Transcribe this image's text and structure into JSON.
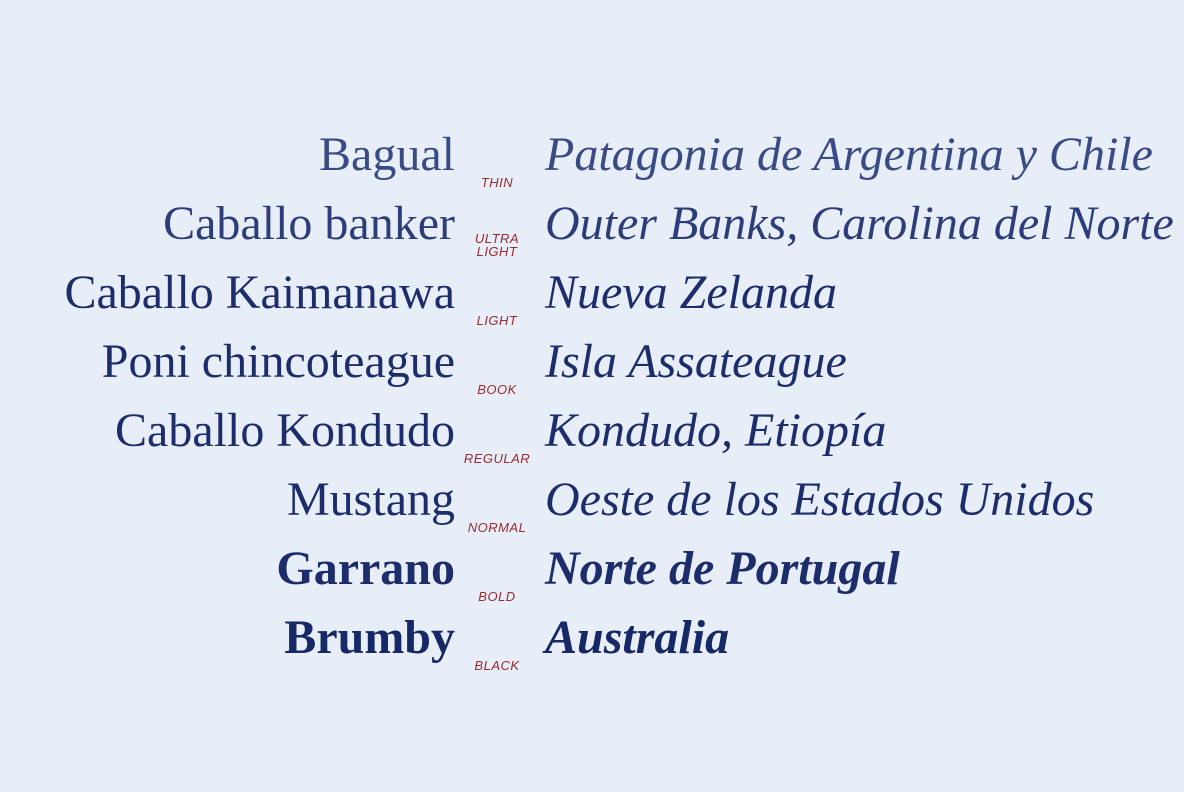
{
  "rows": [
    {
      "name": "Bagual",
      "weight": "THIN",
      "place": "Patagonia de Argentina y Chile"
    },
    {
      "name": "Caballo banker",
      "weight": "ULTRA LIGHT",
      "place": "Outer Banks, Carolina del Norte"
    },
    {
      "name": "Caballo Kaimanawa",
      "weight": "LIGHT",
      "place": "Nueva Zelanda"
    },
    {
      "name": "Poni chincoteague",
      "weight": "BOOK",
      "place": "Isla Assateague"
    },
    {
      "name": "Caballo Kondudo",
      "weight": "REGULAR",
      "place": "Kondudo, Etiopía"
    },
    {
      "name": "Mustang",
      "weight": "NORMAL",
      "place": "Oeste de los Estados Unidos"
    },
    {
      "name": "Garrano",
      "weight": "BOLD",
      "place": "Norte de Portugal"
    },
    {
      "name": "Brumby",
      "weight": "BLACK",
      "place": "Australia"
    }
  ],
  "colors": {
    "background": "#e7eef7",
    "text": "#1d2d6c",
    "label": "#9a2a33"
  }
}
